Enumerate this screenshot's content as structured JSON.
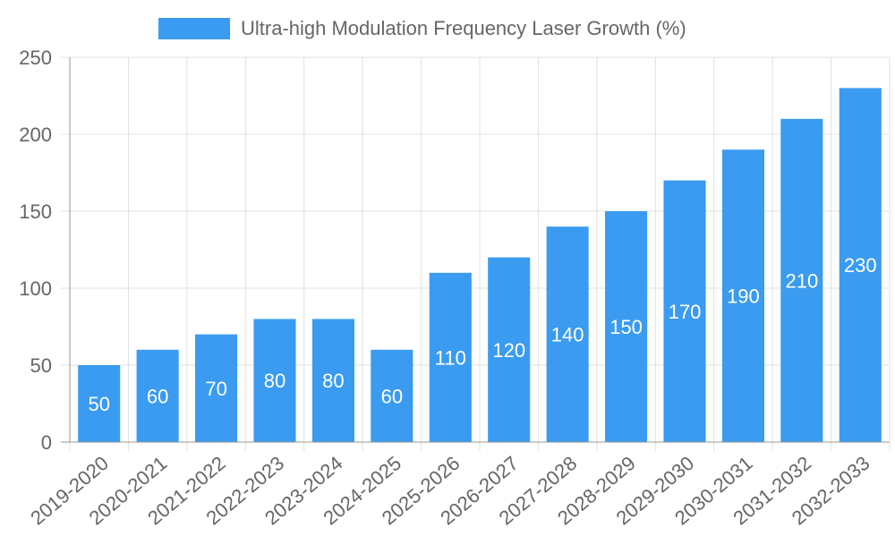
{
  "chart_data": {
    "type": "bar",
    "title": "",
    "xlabel": "",
    "ylabel": "",
    "legend": {
      "position": "top",
      "entries": [
        "Ultra-high Modulation Frequency Laser Growth (%)"
      ]
    },
    "categories": [
      "2019-2020",
      "2020-2021",
      "2021-2022",
      "2022-2023",
      "2023-2024",
      "2024-2025",
      "2025-2026",
      "2026-2027",
      "2027-2028",
      "2028-2029",
      "2029-2030",
      "2030-2031",
      "2031-2032",
      "2032-2033"
    ],
    "series": [
      {
        "name": "Ultra-high Modulation Frequency Laser Growth (%)",
        "values": [
          50,
          60,
          70,
          80,
          80,
          60,
          110,
          120,
          140,
          150,
          170,
          190,
          210,
          230
        ],
        "color": "#3a9bf0"
      }
    ],
    "ylim": [
      0,
      250
    ],
    "yticks": [
      0,
      50,
      100,
      150,
      200,
      250
    ],
    "grid": true,
    "data_labels": true
  }
}
